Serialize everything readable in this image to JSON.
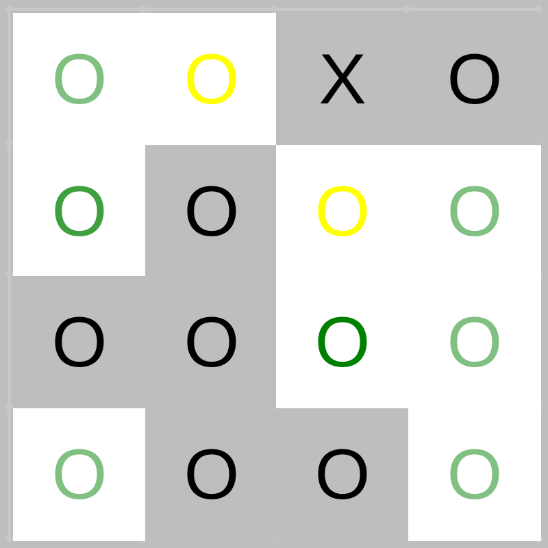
{
  "board": {
    "cells": [
      {
        "mark": "O",
        "color": "#80c080",
        "bg": "#ffffff"
      },
      {
        "mark": "O",
        "color": "#ffff00",
        "bg": "#ffffff"
      },
      {
        "mark": "X",
        "color": "#000000",
        "bg": "#bdbec0"
      },
      {
        "mark": "O",
        "color": "#000000",
        "bg": "#bdbec0"
      },
      {
        "mark": "O",
        "color": "#40a040",
        "bg": "#ffffff"
      },
      {
        "mark": "O",
        "color": "#000000",
        "bg": "#bdbec0"
      },
      {
        "mark": "O",
        "color": "#ffff00",
        "bg": "#ffffff"
      },
      {
        "mark": "O",
        "color": "#80c080",
        "bg": "#ffffff"
      },
      {
        "mark": "O",
        "color": "#000000",
        "bg": "#bdbec0"
      },
      {
        "mark": "O",
        "color": "#000000",
        "bg": "#bdbec0"
      },
      {
        "mark": "O",
        "color": "#008000",
        "bg": "#ffffff"
      },
      {
        "mark": "O",
        "color": "#80c080",
        "bg": "#ffffff"
      },
      {
        "mark": "O",
        "color": "#80c080",
        "bg": "#ffffff"
      },
      {
        "mark": "O",
        "color": "#000000",
        "bg": "#bdbec0"
      },
      {
        "mark": "O",
        "color": "#000000",
        "bg": "#bdbec0"
      },
      {
        "mark": "O",
        "color": "#80c080",
        "bg": "#ffffff"
      }
    ]
  }
}
